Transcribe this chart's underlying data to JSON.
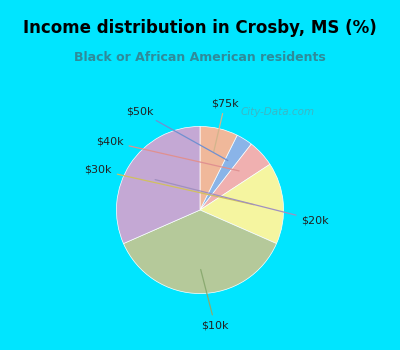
{
  "title": "Income distribution in Crosby, MS (%)",
  "subtitle": "Black or African American residents",
  "title_color": "#000000",
  "subtitle_color": "#2e8b9a",
  "fig_bg_color": "#00e5ff",
  "chart_bg_color": "#dff0e8",
  "watermark": "City-Data.com",
  "figsize": [
    4.0,
    3.5
  ],
  "dpi": 100,
  "slice_labels": [
    "$75k",
    "$50k",
    "$40k",
    "$30k",
    "$10k",
    "$20k"
  ],
  "slice_values": [
    7,
    3,
    5,
    15,
    35,
    30
  ],
  "slice_colors": [
    "#f0b89a",
    "#8ab4e8",
    "#f0b0b0",
    "#f5f5a0",
    "#b5c99a",
    "#c4a8d4"
  ]
}
